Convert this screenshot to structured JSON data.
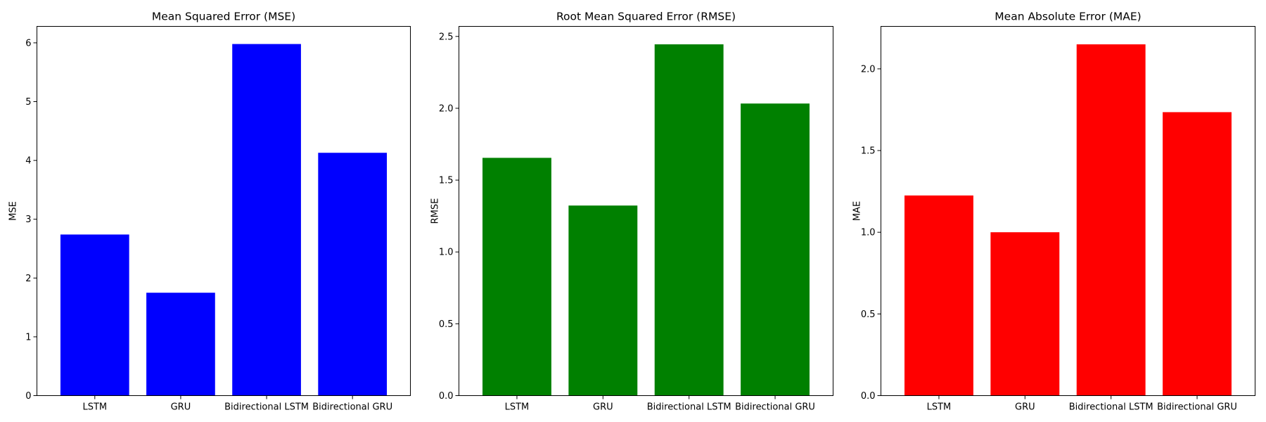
{
  "chart_data": [
    {
      "type": "bar",
      "title": "Mean Squared Error (MSE)",
      "xlabel": "",
      "ylabel": "MSE",
      "categories": [
        "LSTM",
        "GRU",
        "Bidirectional LSTM",
        "Bidirectional GRU"
      ],
      "values": [
        2.74,
        1.75,
        5.98,
        4.13
      ],
      "ylim": [
        0,
        6.28
      ],
      "yticks": [
        0,
        1,
        2,
        3,
        4,
        5,
        6
      ],
      "ytick_labels": [
        "0",
        "1",
        "2",
        "3",
        "4",
        "5",
        "6"
      ],
      "color": "#0000ff",
      "grid": false
    },
    {
      "type": "bar",
      "title": "Root Mean Squared Error (RMSE)",
      "xlabel": "",
      "ylabel": "RMSE",
      "categories": [
        "LSTM",
        "GRU",
        "Bidirectional LSTM",
        "Bidirectional GRU"
      ],
      "values": [
        1.655,
        1.323,
        2.445,
        2.033
      ],
      "ylim": [
        0,
        2.57
      ],
      "yticks": [
        0,
        0.5,
        1.0,
        1.5,
        2.0,
        2.5
      ],
      "ytick_labels": [
        "0.0",
        "0.5",
        "1.0",
        "1.5",
        "2.0",
        "2.5"
      ],
      "color": "#008000",
      "grid": false
    },
    {
      "type": "bar",
      "title": "Mean Absolute Error (MAE)",
      "xlabel": "",
      "ylabel": "MAE",
      "categories": [
        "LSTM",
        "GRU",
        "Bidirectional LSTM",
        "Bidirectional GRU"
      ],
      "values": [
        1.225,
        1.0,
        2.15,
        1.735
      ],
      "ylim": [
        0,
        2.26
      ],
      "yticks": [
        0,
        0.5,
        1.0,
        1.5,
        2.0
      ],
      "ytick_labels": [
        "0.0",
        "0.5",
        "1.0",
        "1.5",
        "2.0"
      ],
      "color": "#ff0000",
      "grid": false
    }
  ]
}
